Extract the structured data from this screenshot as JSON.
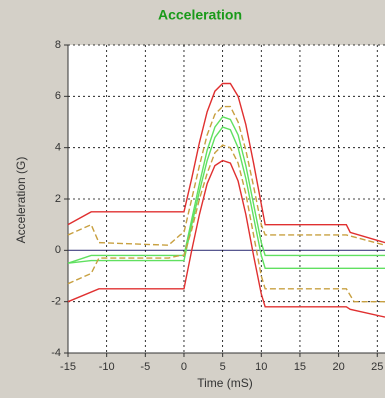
{
  "chart_data": {
    "type": "line",
    "title": "Acceleration",
    "x_label": "Time (mS)",
    "y_label": "Acceleration (G)",
    "xlim": [
      -15,
      26
    ],
    "ylim": [
      -4,
      8
    ],
    "xticks": [
      -15,
      -10,
      -5,
      0,
      5,
      10,
      15,
      20,
      25
    ],
    "yticks": [
      -4,
      -2,
      0,
      2,
      4,
      6,
      8
    ],
    "grid": true,
    "series": [
      {
        "color": "#e03030",
        "dashed": false,
        "x": [
          -15,
          -12,
          0,
          1,
          2,
          3,
          4,
          5,
          6,
          7,
          8,
          9,
          10,
          10.5,
          21,
          21.5,
          26
        ],
        "values": [
          1.0,
          1.5,
          1.5,
          2.8,
          4.2,
          5.4,
          6.2,
          6.5,
          6.5,
          6.0,
          4.9,
          3.4,
          1.8,
          1.0,
          1.0,
          0.7,
          0.3
        ]
      },
      {
        "color": "#c8a040",
        "dashed": true,
        "x": [
          -15,
          -12,
          -11,
          -2,
          -0.5,
          0,
          1,
          2,
          3,
          4,
          5,
          6,
          7,
          8,
          9,
          10,
          10.5,
          21,
          26
        ],
        "values": [
          0.6,
          1.0,
          0.3,
          0.2,
          0.6,
          0.7,
          2.0,
          3.3,
          4.5,
          5.3,
          5.6,
          5.6,
          5.0,
          3.9,
          2.5,
          1.0,
          0.6,
          0.6,
          0.2
        ]
      },
      {
        "color": "#60e060",
        "dashed": false,
        "x": [
          -15,
          -12,
          0,
          1,
          2,
          3,
          4,
          5,
          6,
          7,
          8,
          9,
          10,
          10.5,
          26
        ],
        "values": [
          -0.5,
          -0.2,
          -0.2,
          1.2,
          2.6,
          3.9,
          4.8,
          5.2,
          5.1,
          4.5,
          3.3,
          1.8,
          0.3,
          -0.2,
          -0.2
        ]
      },
      {
        "color": "#60e060",
        "dashed": false,
        "x": [
          -15,
          -12,
          0,
          1,
          2,
          3,
          4,
          5,
          6,
          7,
          8,
          9,
          10,
          10.5,
          26
        ],
        "values": [
          -0.5,
          -0.4,
          -0.4,
          1.0,
          2.3,
          3.5,
          4.4,
          4.8,
          4.7,
          4.0,
          2.8,
          1.3,
          -0.2,
          -0.7,
          -0.7
        ]
      },
      {
        "color": "#c8a040",
        "dashed": true,
        "x": [
          -15,
          -12,
          -11,
          -2,
          -0.5,
          0,
          1,
          2,
          3,
          4,
          5,
          6,
          7,
          8,
          9,
          10,
          10.5,
          21,
          22,
          26
        ],
        "values": [
          -1.3,
          -0.9,
          -0.3,
          -0.3,
          -0.2,
          -0.2,
          0.8,
          2.0,
          3.0,
          3.8,
          4.1,
          4.0,
          3.4,
          2.2,
          0.6,
          -1.0,
          -1.5,
          -1.5,
          -2.0,
          -2.0
        ]
      },
      {
        "color": "#e03030",
        "dashed": false,
        "x": [
          -15,
          -11,
          0,
          1,
          2,
          3,
          4,
          5,
          6,
          7,
          8,
          9,
          10,
          10.5,
          21,
          21.5,
          26
        ],
        "values": [
          -2.0,
          -1.5,
          -1.5,
          0.0,
          1.4,
          2.6,
          3.3,
          3.5,
          3.4,
          2.7,
          1.4,
          -0.2,
          -1.7,
          -2.2,
          -2.2,
          -2.3,
          -2.6
        ]
      }
    ]
  }
}
